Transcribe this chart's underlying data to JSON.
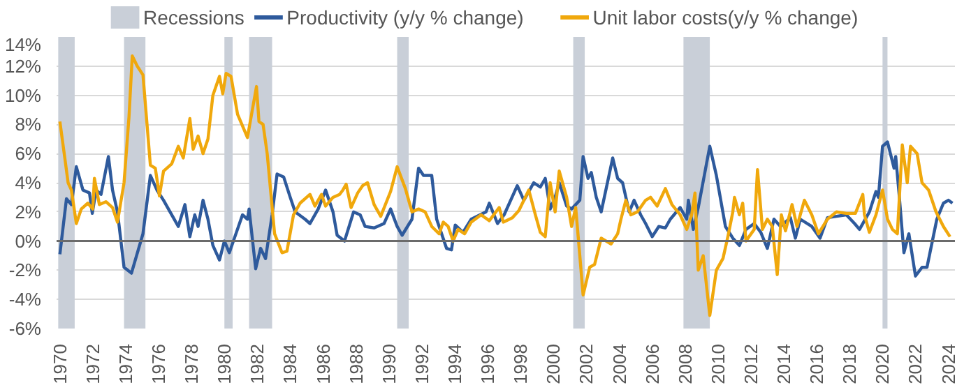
{
  "chart_data": {
    "type": "line",
    "xlim": [
      1969.8,
      2024.4
    ],
    "xticks": [
      1970,
      1972,
      1974,
      1976,
      1978,
      1980,
      1982,
      1984,
      1986,
      1988,
      1990,
      1992,
      1994,
      1996,
      1998,
      2000,
      2002,
      2004,
      2006,
      2008,
      2010,
      2012,
      2014,
      2016,
      2018,
      2020,
      2022,
      2024
    ],
    "ylim": [
      -6,
      14
    ],
    "yticks": [
      {
        "value": -6,
        "label": "-6%"
      },
      {
        "value": -4,
        "label": "-4%"
      },
      {
        "value": -2,
        "label": "-2%"
      },
      {
        "value": 0,
        "label": "0%"
      },
      {
        "value": 2,
        "label": "2%"
      },
      {
        "value": 4,
        "label": "4%"
      },
      {
        "value": 6,
        "label": "6%"
      },
      {
        "value": 8,
        "label": "8%"
      },
      {
        "value": 10,
        "label": "10%"
      },
      {
        "value": 12,
        "label": "12%"
      },
      {
        "value": 14,
        "label": "14%"
      }
    ],
    "grid": "y",
    "legend": "top",
    "line_style": "solid",
    "bands": [
      {
        "axis": "x",
        "from": 1969.9,
        "to": 1970.9,
        "label": "Recessions",
        "color": "#c9cfd8"
      },
      {
        "axis": "x",
        "from": 1973.9,
        "to": 1975.2,
        "color": "#c9cfd8"
      },
      {
        "axis": "x",
        "from": 1980.0,
        "to": 1980.5,
        "color": "#c9cfd8"
      },
      {
        "axis": "x",
        "from": 1981.5,
        "to": 1982.9,
        "color": "#c9cfd8"
      },
      {
        "axis": "x",
        "from": 1990.5,
        "to": 1991.2,
        "color": "#c9cfd8"
      },
      {
        "axis": "x",
        "from": 2001.2,
        "to": 2001.9,
        "color": "#c9cfd8"
      },
      {
        "axis": "x",
        "from": 2007.9,
        "to": 2009.5,
        "color": "#c9cfd8"
      },
      {
        "axis": "x",
        "from": 2020.0,
        "to": 2020.3,
        "color": "#c9cfd8"
      }
    ],
    "ref_lines": [
      {
        "axis": "y",
        "value": 0,
        "color": "#6b6b6b"
      }
    ],
    "series": [
      {
        "name": "Productivity (y/y % change)",
        "color": "#2e5a9c",
        "x": [
          1970.0,
          1970.4,
          1970.7,
          1971.0,
          1971.4,
          1971.8,
          1971.97,
          1972.2,
          1972.5,
          1972.95,
          1973.2,
          1973.5,
          1973.9,
          1974.35,
          1975.05,
          1975.5,
          1975.9,
          1976.3,
          1976.7,
          1977.2,
          1977.6,
          1977.9,
          1978.2,
          1978.4,
          1978.7,
          1979.0,
          1979.3,
          1979.7,
          1980.0,
          1980.3,
          1980.7,
          1981.1,
          1981.4,
          1981.5,
          1981.9,
          1982.2,
          1982.5,
          1982.9,
          1983.2,
          1983.6,
          1984.0,
          1984.3,
          1984.9,
          1985.2,
          1985.7,
          1986.15,
          1986.6,
          1986.85,
          1987.3,
          1987.85,
          1988.25,
          1988.55,
          1989.1,
          1989.7,
          1990.1,
          1990.5,
          1990.8,
          1991.4,
          1991.8,
          1992.1,
          1992.6,
          1992.9,
          1993.5,
          1993.8,
          1994.03,
          1994.5,
          1995.0,
          1995.9,
          1996.1,
          1996.6,
          1997.0,
          1997.8,
          1998.2,
          1998.8,
          1999.2,
          1999.5,
          1999.8,
          2000.1,
          2000.35,
          2000.8,
          2001.1,
          2001.6,
          2001.8,
          2002.1,
          2002.3,
          2002.6,
          2002.9,
          2003.6,
          2003.9,
          2004.2,
          2004.6,
          2004.9,
          2005.3,
          2005.6,
          2006.0,
          2006.4,
          2006.8,
          2007.1,
          2007.7,
          2008.1,
          2008.2,
          2008.5,
          2008.8,
          2009.5,
          2009.9,
          2010.45,
          2010.9,
          2011.3,
          2011.7,
          2012.2,
          2012.6,
          2013.0,
          2013.4,
          2013.8,
          2014.4,
          2014.7,
          2015.0,
          2015.7,
          2016.2,
          2016.65,
          2017.2,
          2017.8,
          2018.3,
          2018.6,
          2019.2,
          2019.6,
          2019.75,
          2020.0,
          2020.3,
          2020.7,
          2020.8,
          2021.0,
          2021.3,
          2021.6,
          2022.0,
          2022.4,
          2022.7,
          2023.3,
          2023.7,
          2024.0,
          2024.25
        ],
        "values": [
          -0.9,
          2.9,
          2.5,
          5.1,
          3.5,
          3.3,
          1.9,
          3.5,
          3.2,
          5.8,
          3.5,
          2.0,
          -1.8,
          -2.2,
          0.5,
          4.5,
          3.5,
          2.8,
          2.0,
          1.0,
          2.5,
          0.3,
          1.8,
          1.0,
          2.8,
          1.5,
          -0.3,
          -1.3,
          0.0,
          -0.8,
          0.5,
          1.8,
          1.5,
          2.2,
          -1.9,
          -0.5,
          -1.2,
          1.8,
          4.6,
          4.4,
          3.0,
          2.0,
          1.5,
          1.2,
          2.2,
          3.5,
          2.0,
          0.4,
          0.0,
          2.0,
          1.8,
          1.0,
          0.9,
          1.2,
          2.2,
          1.0,
          0.4,
          1.5,
          5.0,
          4.5,
          4.5,
          1.5,
          -0.5,
          -0.6,
          1.1,
          0.6,
          1.5,
          2.0,
          2.6,
          1.2,
          1.8,
          3.8,
          2.8,
          4.0,
          3.7,
          4.3,
          2.2,
          3.0,
          4.0,
          2.4,
          2.2,
          2.8,
          5.8,
          4.3,
          4.7,
          3.0,
          2.0,
          5.7,
          4.3,
          4.0,
          2.0,
          2.8,
          1.8,
          1.2,
          0.3,
          1.0,
          0.9,
          1.5,
          2.3,
          1.5,
          2.8,
          0.8,
          2.3,
          6.5,
          4.5,
          1.0,
          0.2,
          -0.3,
          0.8,
          1.2,
          0.6,
          -0.5,
          1.5,
          1.0,
          1.6,
          0.2,
          1.5,
          1.0,
          0.2,
          1.6,
          1.7,
          1.8,
          1.2,
          0.8,
          2.0,
          3.4,
          3.0,
          6.5,
          6.8,
          5.0,
          5.8,
          3.3,
          -0.8,
          0.5,
          -2.4,
          -1.8,
          -1.8,
          1.5,
          2.6,
          2.8,
          2.6
        ]
      },
      {
        "name": "Unit labor costs(y/y % change)",
        "color": "#f0a80c",
        "x": [
          1970.0,
          1970.3,
          1970.5,
          1970.7,
          1971.0,
          1971.3,
          1971.7,
          1972.0,
          1972.1,
          1972.4,
          1972.8,
          1973.2,
          1973.5,
          1973.9,
          1974.2,
          1974.4,
          1974.7,
          1975.05,
          1975.5,
          1975.8,
          1976.05,
          1976.3,
          1976.8,
          1977.2,
          1977.5,
          1977.9,
          1978.1,
          1978.4,
          1978.7,
          1979.0,
          1979.3,
          1979.7,
          1979.9,
          1980.1,
          1980.4,
          1980.8,
          1981.4,
          1981.95,
          1982.1,
          1982.35,
          1982.6,
          1983.05,
          1983.5,
          1983.8,
          1984.2,
          1984.6,
          1985.2,
          1985.5,
          1985.9,
          1986.15,
          1986.6,
          1987.0,
          1987.2,
          1987.4,
          1987.7,
          1988.1,
          1988.4,
          1988.7,
          1989.1,
          1989.5,
          1990.1,
          1990.5,
          1991.0,
          1991.4,
          1991.8,
          1992.2,
          1992.6,
          1993.05,
          1993.3,
          1993.6,
          1993.9,
          1994.2,
          1994.6,
          1995.0,
          1995.6,
          1996.1,
          1996.7,
          1996.95,
          1997.5,
          1997.9,
          1998.5,
          1998.9,
          1999.2,
          1999.5,
          1999.8,
          2000.1,
          2000.35,
          2000.8,
          2001.1,
          2001.35,
          2001.6,
          2001.8,
          2002.2,
          2002.5,
          2002.9,
          2003.2,
          2003.5,
          2003.9,
          2004.1,
          2004.4,
          2004.7,
          2005.1,
          2005.6,
          2005.9,
          2006.3,
          2006.8,
          2007.2,
          2007.7,
          2008.1,
          2008.4,
          2008.6,
          2008.8,
          2009.1,
          2009.5,
          2009.9,
          2010.3,
          2010.6,
          2010.9,
          2011.0,
          2011.3,
          2011.5,
          2011.7,
          2012.2,
          2012.4,
          2012.7,
          2013.0,
          2013.3,
          2013.6,
          2013.85,
          2014.1,
          2014.5,
          2014.8,
          2015.25,
          2015.7,
          2016.1,
          2016.65,
          2017.2,
          2017.8,
          2018.35,
          2018.8,
          2018.9,
          2019.2,
          2019.6,
          2020.0,
          2020.3,
          2020.6,
          2020.9,
          2021.2,
          2021.5,
          2021.7,
          2022.1,
          2022.4,
          2022.8,
          2023.25,
          2023.7,
          2024.1
        ],
        "values": [
          8.2,
          5.7,
          4.0,
          3.5,
          1.2,
          2.2,
          2.6,
          2.2,
          4.3,
          2.5,
          2.7,
          2.3,
          1.3,
          4.0,
          8.5,
          12.7,
          12.0,
          11.4,
          5.2,
          5.0,
          3.1,
          4.8,
          5.3,
          6.5,
          5.7,
          8.4,
          6.3,
          7.2,
          6.0,
          7.0,
          10.0,
          11.3,
          10.1,
          11.5,
          11.3,
          8.7,
          7.1,
          10.6,
          8.2,
          8.0,
          6.0,
          0.5,
          -0.8,
          -0.7,
          1.8,
          2.6,
          3.2,
          2.4,
          3.2,
          2.4,
          3.0,
          3.2,
          3.5,
          3.9,
          2.3,
          3.3,
          3.8,
          4.0,
          2.5,
          1.7,
          3.4,
          5.1,
          3.6,
          2.0,
          2.2,
          2.0,
          1.0,
          0.5,
          1.3,
          1.0,
          0.0,
          0.8,
          0.5,
          1.3,
          1.8,
          1.4,
          2.3,
          1.3,
          1.6,
          2.1,
          3.5,
          1.8,
          0.6,
          0.3,
          4.0,
          2.0,
          4.8,
          3.0,
          1.0,
          2.3,
          -1.0,
          -3.7,
          -1.8,
          -1.6,
          0.2,
          0.0,
          -0.2,
          0.5,
          1.5,
          2.8,
          1.8,
          2.0,
          2.8,
          3.0,
          2.4,
          3.6,
          2.5,
          1.8,
          0.8,
          1.8,
          3.3,
          -2.0,
          -1.0,
          -5.1,
          -2.0,
          -1.2,
          0.3,
          2.0,
          3.0,
          1.8,
          2.6,
          0.0,
          0.8,
          4.9,
          0.8,
          1.5,
          1.0,
          -2.3,
          1.8,
          0.7,
          2.5,
          1.0,
          2.8,
          1.8,
          0.5,
          1.5,
          2.0,
          1.9,
          1.9,
          3.2,
          1.8,
          0.6,
          1.8,
          3.5,
          1.5,
          0.8,
          0.5,
          6.6,
          4.0,
          6.5,
          6.0,
          4.0,
          3.5,
          2.0,
          1.0,
          0.3
        ]
      }
    ]
  }
}
